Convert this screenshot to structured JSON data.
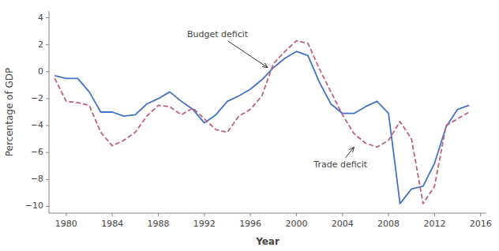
{
  "chart_data": {
    "type": "line",
    "x": [
      1979,
      1980,
      1981,
      1982,
      1983,
      1984,
      1985,
      1986,
      1987,
      1988,
      1989,
      1990,
      1991,
      1992,
      1993,
      1994,
      1995,
      1996,
      1997,
      1998,
      1999,
      2000,
      2001,
      2002,
      2003,
      2004,
      2005,
      2006,
      2007,
      2008,
      2009,
      2010,
      2011,
      2012,
      2013,
      2014,
      2015
    ],
    "series": [
      {
        "color": "#4472C4",
        "line_style": "solid",
        "values": [
          -0.3,
          -0.5,
          -0.5,
          -1.5,
          -3.0,
          -3.0,
          -3.3,
          -3.2,
          -2.4,
          -2.0,
          -1.5,
          -2.2,
          -2.8,
          -3.8,
          -3.2,
          -2.2,
          -1.8,
          -1.3,
          -0.6,
          0.3,
          1.0,
          1.5,
          1.2,
          -0.8,
          -2.4,
          -3.1,
          -3.1,
          -2.6,
          -2.2,
          -3.1,
          -9.8,
          -8.7,
          -8.5,
          -6.8,
          -4.1,
          -2.8,
          -2.5
        ]
      },
      {
        "color": "#C06080",
        "line_style": "dashed",
        "values": [
          -0.5,
          -2.2,
          -2.3,
          -2.5,
          -4.5,
          -5.5,
          -5.1,
          -4.5,
          -3.3,
          -2.5,
          -2.6,
          -3.2,
          -2.7,
          -3.5,
          -4.3,
          -4.5,
          -3.3,
          -2.8,
          -1.8,
          0.6,
          1.5,
          2.3,
          2.1,
          0.2,
          -1.5,
          -3.2,
          -4.6,
          -5.3,
          -5.6,
          -5.1,
          -3.7,
          -5.0,
          -9.8,
          -8.5,
          -4.0,
          -3.5,
          -3.0
        ]
      }
    ],
    "xlim": [
      1978.5,
      2016.5
    ],
    "ylim": [
      -10.5,
      4.5
    ],
    "xticks": [
      1980,
      1984,
      1988,
      1992,
      1996,
      2000,
      2004,
      2008,
      2012,
      2016
    ],
    "yticks": [
      {
        "value": -10,
        "label": "−10"
      },
      {
        "value": -8,
        "label": "−8"
      },
      {
        "value": -6,
        "label": "−6"
      },
      {
        "value": -4,
        "label": "−4"
      },
      {
        "value": -2,
        "label": "−2"
      },
      0,
      2,
      4
    ],
    "x_label": "Year",
    "y_label": "Percentage of GDP",
    "annotations": [
      {
        "text": "Budget deficit",
        "x": 1997.5,
        "y": 0.3,
        "text_x": 1990.5,
        "text_y": 2.4
      },
      {
        "text": "Trade deficit",
        "x": 2005.0,
        "y": -5.6,
        "text_x": 2001.5,
        "text_y": -6.5
      }
    ],
    "grid": false
  }
}
